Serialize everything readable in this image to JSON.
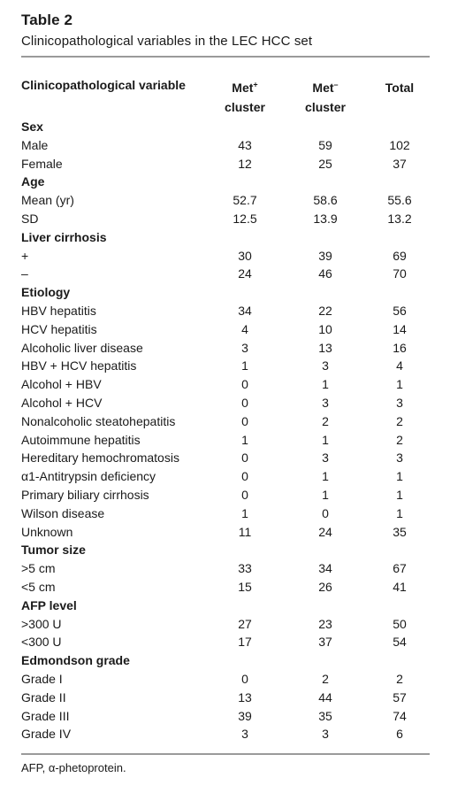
{
  "table": {
    "label": "Table 2",
    "caption": "Clinicopathological variables in the LEC HCC set",
    "headers": {
      "variable": "Clinicopathological variable",
      "met_pos_line1": "Met",
      "met_pos_sup": "+",
      "met_pos_line2": "cluster",
      "met_neg_line1": "Met",
      "met_neg_sup": "–",
      "met_neg_line2": "cluster",
      "total": "Total"
    },
    "rows": [
      {
        "type": "section",
        "label": "Sex"
      },
      {
        "type": "data",
        "label": "Male",
        "met_pos": "43",
        "met_neg": "59",
        "total": "102"
      },
      {
        "type": "data",
        "label": "Female",
        "met_pos": "12",
        "met_neg": "25",
        "total": "37"
      },
      {
        "type": "section",
        "label": "Age"
      },
      {
        "type": "data",
        "label": "Mean (yr)",
        "met_pos": "52.7",
        "met_neg": "58.6",
        "total": "55.6"
      },
      {
        "type": "data",
        "label": "SD",
        "met_pos": "12.5",
        "met_neg": "13.9",
        "total": "13.2"
      },
      {
        "type": "section",
        "label": "Liver cirrhosis"
      },
      {
        "type": "data",
        "label": "+",
        "met_pos": "30",
        "met_neg": "39",
        "total": "69"
      },
      {
        "type": "data",
        "label": "–",
        "met_pos": "24",
        "met_neg": "46",
        "total": "70"
      },
      {
        "type": "section",
        "label": "Etiology"
      },
      {
        "type": "data",
        "label": "HBV hepatitis",
        "met_pos": "34",
        "met_neg": "22",
        "total": "56"
      },
      {
        "type": "data",
        "label": "HCV hepatitis",
        "met_pos": "4",
        "met_neg": "10",
        "total": "14"
      },
      {
        "type": "data",
        "label": "Alcoholic liver disease",
        "met_pos": "3",
        "met_neg": "13",
        "total": "16"
      },
      {
        "type": "data",
        "label": "HBV + HCV hepatitis",
        "met_pos": "1",
        "met_neg": "3",
        "total": "4"
      },
      {
        "type": "data",
        "label": "Alcohol + HBV",
        "met_pos": "0",
        "met_neg": "1",
        "total": "1"
      },
      {
        "type": "data",
        "label": "Alcohol + HCV",
        "met_pos": "0",
        "met_neg": "3",
        "total": "3"
      },
      {
        "type": "data",
        "label": "Nonalcoholic steatohepatitis",
        "met_pos": "0",
        "met_neg": "2",
        "total": "2"
      },
      {
        "type": "data",
        "label": "Autoimmune hepatitis",
        "met_pos": "1",
        "met_neg": "1",
        "total": "2"
      },
      {
        "type": "data",
        "label": "Hereditary hemochromatosis",
        "met_pos": "0",
        "met_neg": "3",
        "total": "3"
      },
      {
        "type": "data",
        "label": "α1-Antitrypsin deficiency",
        "met_pos": "0",
        "met_neg": "1",
        "total": "1"
      },
      {
        "type": "data",
        "label": "Primary biliary cirrhosis",
        "met_pos": "0",
        "met_neg": "1",
        "total": "1"
      },
      {
        "type": "data",
        "label": "Wilson disease",
        "met_pos": "1",
        "met_neg": "0",
        "total": "1"
      },
      {
        "type": "data",
        "label": "Unknown",
        "met_pos": "11",
        "met_neg": "24",
        "total": "35"
      },
      {
        "type": "section",
        "label": "Tumor size"
      },
      {
        "type": "data",
        "label": ">5 cm",
        "met_pos": "33",
        "met_neg": "34",
        "total": "67"
      },
      {
        "type": "data",
        "label": "<5 cm",
        "met_pos": "15",
        "met_neg": "26",
        "total": "41"
      },
      {
        "type": "section",
        "label": "AFP level"
      },
      {
        "type": "data",
        "label": ">300 U",
        "met_pos": "27",
        "met_neg": "23",
        "total": "50"
      },
      {
        "type": "data",
        "label": "<300 U",
        "met_pos": "17",
        "met_neg": "37",
        "total": "54"
      },
      {
        "type": "section",
        "label": "Edmondson grade"
      },
      {
        "type": "data",
        "label": "Grade I",
        "met_pos": "0",
        "met_neg": "2",
        "total": "2"
      },
      {
        "type": "data",
        "label": "Grade II",
        "met_pos": "13",
        "met_neg": "44",
        "total": "57"
      },
      {
        "type": "data",
        "label": "Grade III",
        "met_pos": "39",
        "met_neg": "35",
        "total": "74"
      },
      {
        "type": "data",
        "label": "Grade IV",
        "met_pos": "3",
        "met_neg": "3",
        "total": "6"
      }
    ],
    "footnote": "AFP, α-phetoprotein."
  }
}
